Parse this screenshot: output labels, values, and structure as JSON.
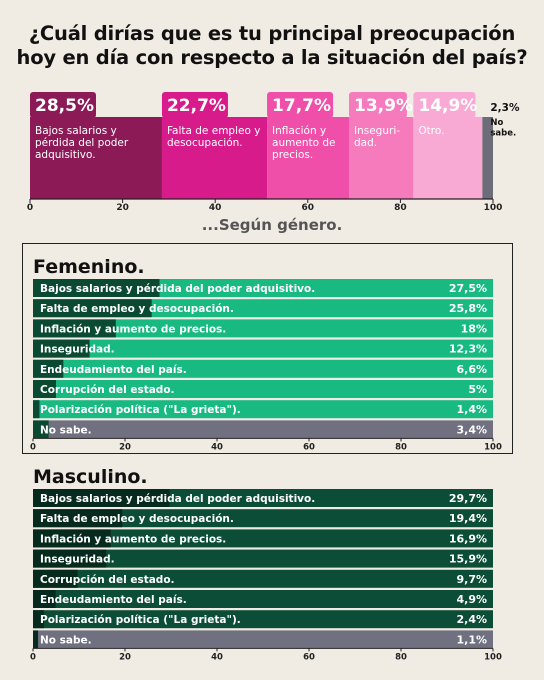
{
  "title_lines": [
    "¿Cuál dirías que es tu principal preocupación",
    "hoy en día con respecto a la situación del país?"
  ],
  "subtitle": "...Según género.",
  "colors": {
    "seg": [
      "#8b1a56",
      "#d81b8a",
      "#f04fa9",
      "#f57bbd",
      "#f9aad4",
      "#6d6d7a"
    ],
    "fem_bar": "#19b982",
    "fem_dark": "#0a4a33",
    "masc_bar": "#0c4d37",
    "masc_dark": "#062b1e",
    "nosabe": "#707080"
  },
  "chart_data": [
    {
      "type": "bar",
      "orientation": "stacked-horizontal",
      "xlim": [
        0,
        100
      ],
      "ticks": [
        "0",
        "20",
        "40",
        "60",
        "80",
        "100"
      ],
      "segments": [
        {
          "pct": "28,5%",
          "value": 28.5,
          "label": [
            "Bajos salarios y",
            "pérdida del poder",
            "adquisitivo."
          ]
        },
        {
          "pct": "22,7%",
          "value": 22.7,
          "label": [
            "Falta de empleo y",
            "desocupación."
          ]
        },
        {
          "pct": "17,7%",
          "value": 17.7,
          "label": [
            "Inflación y",
            "aumento de",
            "precios."
          ]
        },
        {
          "pct": "13,9%",
          "value": 13.9,
          "label": [
            "Inseguri-",
            "dad."
          ]
        },
        {
          "pct": "14,9%",
          "value": 14.9,
          "label": [
            "Otro."
          ]
        },
        {
          "pct": "2,3%",
          "value": 2.3,
          "label": [
            "No",
            "sabe."
          ]
        }
      ]
    },
    {
      "type": "bar",
      "title": "Femenino.",
      "xlim": [
        0,
        100
      ],
      "ticks": [
        "0",
        "20",
        "40",
        "60",
        "80",
        "100"
      ],
      "rows": [
        {
          "label": "Bajos salarios y pérdida del poder adquisitivo.",
          "pct": "27,5%",
          "value": 27.5
        },
        {
          "label": "Falta de empleo y desocupación.",
          "pct": "25,8%",
          "value": 25.8
        },
        {
          "label": "Inflación y aumento de precios.",
          "pct": "18%",
          "value": 18
        },
        {
          "label": "Inseguridad.",
          "pct": "12,3%",
          "value": 12.3
        },
        {
          "label": "Endeudamiento del país.",
          "pct": "6,6%",
          "value": 6.6
        },
        {
          "label": "Corrupción del estado.",
          "pct": "5%",
          "value": 5
        },
        {
          "label": "Polarización política (\"La grieta\").",
          "pct": "1,4%",
          "value": 1.4
        },
        {
          "label": "No sabe.",
          "pct": "3,4%",
          "value": 3.4
        }
      ]
    },
    {
      "type": "bar",
      "title": "Masculino.",
      "xlim": [
        0,
        100
      ],
      "ticks": [
        "0",
        "20",
        "40",
        "60",
        "80",
        "100"
      ],
      "rows": [
        {
          "label": "Bajos salarios y pérdida del poder adquisitivo.",
          "pct": "29,7%",
          "value": 29.7
        },
        {
          "label": "Falta de empleo y desocupación.",
          "pct": "19,4%",
          "value": 19.4
        },
        {
          "label": "Inflación y aumento de precios.",
          "pct": "16,9%",
          "value": 16.9
        },
        {
          "label": "Inseguridad.",
          "pct": "15,9%",
          "value": 15.9
        },
        {
          "label": "Corrupción del estado.",
          "pct": "9,7%",
          "value": 9.7
        },
        {
          "label": "Endeudamiento del país.",
          "pct": "4,9%",
          "value": 4.9
        },
        {
          "label": "Polarización política (\"La grieta\").",
          "pct": "2,4%",
          "value": 2.4
        },
        {
          "label": "No sabe.",
          "pct": "1,1%",
          "value": 1.1
        }
      ]
    }
  ]
}
